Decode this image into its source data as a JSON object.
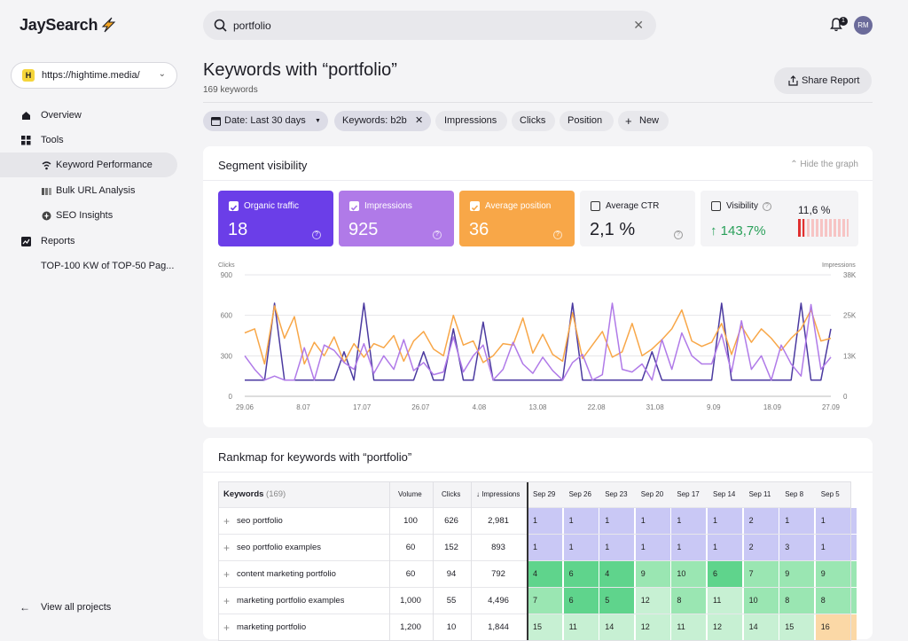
{
  "app": {
    "logo": "JaySearch"
  },
  "sidebar": {
    "project": {
      "badge": "H",
      "url": "https://hightime.media/"
    },
    "items": [
      {
        "label": "Overview",
        "icon": "home-icon"
      },
      {
        "label": "Tools",
        "icon": "grid-icon"
      },
      {
        "label": "Keyword Performance",
        "icon": "signal-icon",
        "active": true
      },
      {
        "label": "Bulk URL Analysis",
        "icon": "bars-icon"
      },
      {
        "label": "SEO Insights",
        "icon": "insight-icon"
      },
      {
        "label": "Reports",
        "icon": "chart-icon"
      },
      {
        "label": "TOP-100 KW of TOP-50 Pag..."
      }
    ],
    "view_all": "View all projects"
  },
  "search": {
    "value": "portfolio"
  },
  "header": {
    "notifications": "1",
    "avatar": "RM"
  },
  "page": {
    "title": "Keywords with “portfolio”",
    "subtitle": "169 keywords",
    "share": "Share Report"
  },
  "filters": [
    {
      "label": "Date: Last 30 days",
      "type": "dropdown"
    },
    {
      "label": "Keywords: b2b",
      "type": "removable"
    },
    {
      "label": "Impressions"
    },
    {
      "label": "Clicks"
    },
    {
      "label": "Position"
    },
    {
      "label": "New",
      "type": "add"
    }
  ],
  "segment": {
    "title": "Segment visibility",
    "hide": "Hide the graph",
    "metrics": [
      {
        "label": "Organic traffic",
        "value": "18",
        "color": "#6b3ee8",
        "checked": true
      },
      {
        "label": "Impressions",
        "value": "925",
        "color": "#b07ae8",
        "checked": true
      },
      {
        "label": "Average position",
        "value": "36",
        "color": "#f8a748",
        "checked": true
      },
      {
        "label": "Average CTR",
        "value": "2,1 %",
        "color": "#f4f4f6",
        "checked": false
      },
      {
        "label": "Visibility",
        "value": "↑ 143,7%",
        "color": "#f4f4f6",
        "checked": false,
        "extra": "11,6 %"
      }
    ]
  },
  "chart_data": {
    "type": "line",
    "left_axis_label": "Clicks",
    "right_axis_label": "Impressions",
    "left_ticks": [
      "900",
      "600",
      "300",
      "0"
    ],
    "right_ticks": [
      "38K",
      "25K",
      "13K",
      "0"
    ],
    "ylim_left": [
      0,
      900
    ],
    "ylim_right": [
      0,
      38000
    ],
    "x_ticks": [
      "29.06",
      "8.07",
      "17.07",
      "26.07",
      "4.08",
      "13.08",
      "22.08",
      "31.08",
      "9.09",
      "18.09",
      "27.09"
    ],
    "series": [
      {
        "name": "Clicks",
        "color": "#4b3aa0",
        "axis": "left",
        "values": [
          120,
          120,
          120,
          690,
          120,
          120,
          120,
          120,
          120,
          120,
          330,
          120,
          690,
          120,
          120,
          120,
          120,
          120,
          330,
          120,
          120,
          500,
          120,
          120,
          550,
          120,
          120,
          120,
          120,
          120,
          120,
          120,
          120,
          690,
          120,
          120,
          120,
          120,
          120,
          120,
          120,
          330,
          120,
          120,
          120,
          120,
          120,
          120,
          690,
          120,
          120,
          120,
          120,
          120,
          120,
          120,
          690,
          120,
          120,
          500
        ]
      },
      {
        "name": "Impressions",
        "color": "#f8a748",
        "axis": "left",
        "values": [
          470,
          500,
          240,
          670,
          430,
          590,
          240,
          400,
          300,
          440,
          250,
          390,
          290,
          390,
          360,
          450,
          260,
          410,
          480,
          350,
          300,
          600,
          380,
          410,
          250,
          300,
          390,
          380,
          580,
          320,
          460,
          310,
          260,
          620,
          280,
          380,
          480,
          290,
          330,
          540,
          300,
          350,
          420,
          500,
          640,
          410,
          370,
          400,
          540,
          310,
          520,
          400,
          500,
          430,
          340,
          430,
          500,
          640,
          410,
          430
        ]
      },
      {
        "name": "Organic traffic",
        "color": "#b07ae8",
        "axis": "left",
        "values": [
          300,
          200,
          120,
          150,
          120,
          120,
          360,
          120,
          380,
          340,
          250,
          200,
          390,
          170,
          300,
          200,
          420,
          190,
          250,
          160,
          180,
          440,
          180,
          300,
          380,
          120,
          200,
          400,
          240,
          170,
          290,
          190,
          120,
          250,
          310,
          120,
          160,
          690,
          200,
          180,
          240,
          120,
          420,
          200,
          470,
          300,
          240,
          240,
          460,
          180,
          560,
          200,
          300,
          120,
          380,
          240,
          150,
          680,
          200,
          290
        ]
      }
    ]
  },
  "rankmap": {
    "title": "Rankmap for keywords with “portfolio”",
    "columns": [
      "Keywords",
      "(169)",
      "Volume",
      "Clicks",
      "↓ Impressions"
    ],
    "dates": [
      "Sep 29",
      "Sep 26",
      "Sep 23",
      "Sep 20",
      "Sep 17",
      "Sep 14",
      "Sep 11",
      "Sep 8",
      "Sep 5"
    ],
    "rows": [
      {
        "keyword": "seo portfolio",
        "volume": "100",
        "clicks": "626",
        "impressions": "2,981",
        "ranks": [
          "1",
          "1",
          "1",
          "1",
          "1",
          "1",
          "2",
          "1",
          "1"
        ]
      },
      {
        "keyword": "seo portfolio examples",
        "volume": "60",
        "clicks": "152",
        "impressions": "893",
        "ranks": [
          "1",
          "1",
          "1",
          "1",
          "1",
          "1",
          "2",
          "3",
          "1"
        ]
      },
      {
        "keyword": "content marketing portfolio",
        "volume": "60",
        "clicks": "94",
        "impressions": "792",
        "ranks": [
          "4",
          "6",
          "4",
          "9",
          "10",
          "6",
          "7",
          "9",
          "9"
        ]
      },
      {
        "keyword": "marketing portfolio examples",
        "volume": "1,000",
        "clicks": "55",
        "impressions": "4,496",
        "ranks": [
          "7",
          "6",
          "5",
          "12",
          "8",
          "11",
          "10",
          "8",
          "8"
        ]
      },
      {
        "keyword": "marketing portfolio",
        "volume": "1,200",
        "clicks": "10",
        "impressions": "1,844",
        "ranks": [
          "15",
          "11",
          "14",
          "12",
          "11",
          "12",
          "14",
          "15",
          "16"
        ]
      }
    ]
  }
}
